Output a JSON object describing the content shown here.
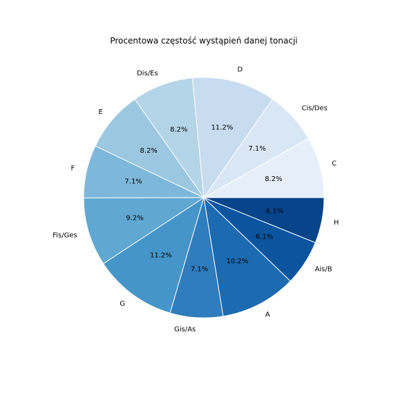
{
  "chart_data": {
    "type": "pie",
    "title": "Procentowa częstość wystąpień danej tonacji",
    "categories": [
      "C",
      "Cis/Des",
      "D",
      "Dis/Es",
      "E",
      "F",
      "Fis/Ges",
      "G",
      "Gis/As",
      "A",
      "Ais/B",
      "H"
    ],
    "values": [
      8.2,
      7.1,
      11.2,
      8.2,
      8.2,
      7.1,
      9.2,
      11.2,
      7.1,
      10.2,
      6.1,
      6.1
    ],
    "percent_labels": [
      "8.2%",
      "7.1%",
      "11.2%",
      "8.2%",
      "8.2%",
      "7.1%",
      "9.2%",
      "11.2%",
      "7.1%",
      "10.2%",
      "6.1%",
      "6.1%"
    ],
    "colors": [
      "#e6eff9",
      "#d9e7f5",
      "#c8dcf0",
      "#b4d4e8",
      "#9bc8e0",
      "#7db8da",
      "#60a7d2",
      "#4695c8",
      "#2f7dbc",
      "#1c6ab0",
      "#0b559f",
      "#08448a"
    ],
    "start_angle_deg": 0,
    "direction": "counterclockwise",
    "edge_color": "#ffffff"
  }
}
